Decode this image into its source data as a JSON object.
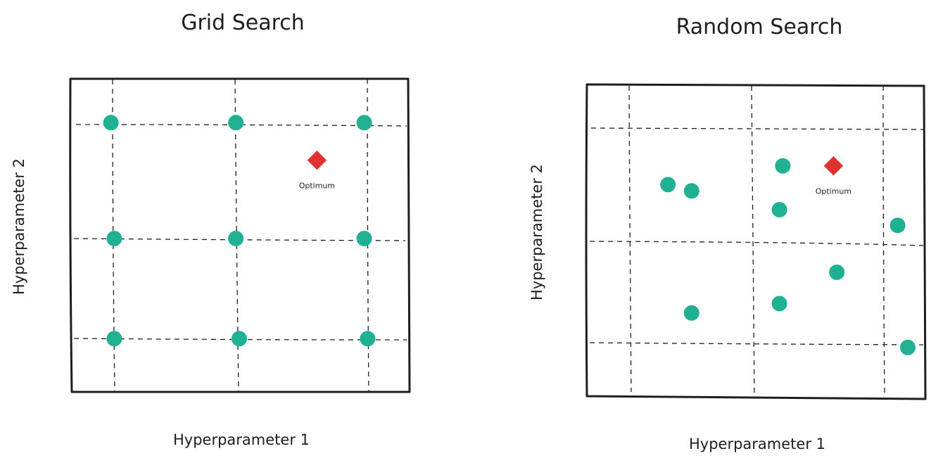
{
  "colors": {
    "point": "#20b092",
    "optimum": "#e03131",
    "ink": "#1e1e1e"
  },
  "panels": [
    {
      "title": "Grid Search",
      "x_label": "Hyperparameter 1",
      "y_label": "Hyperparameter 2",
      "optimum_label": "Optimum",
      "points": [
        {
          "h1": 0.12,
          "h2": 0.86
        },
        {
          "h1": 0.49,
          "h2": 0.86
        },
        {
          "h1": 0.87,
          "h2": 0.86
        },
        {
          "h1": 0.13,
          "h2": 0.49
        },
        {
          "h1": 0.49,
          "h2": 0.49
        },
        {
          "h1": 0.87,
          "h2": 0.49
        },
        {
          "h1": 0.13,
          "h2": 0.17
        },
        {
          "h1": 0.5,
          "h2": 0.17
        },
        {
          "h1": 0.88,
          "h2": 0.17
        }
      ],
      "optimum": {
        "h1": 0.73,
        "h2": 0.74
      }
    },
    {
      "title": "Random Search",
      "x_label": "Hyperparameter 1",
      "y_label": "Hyperparameter 2",
      "optimum_label": "Optimum",
      "points": [
        {
          "h1": 0.24,
          "h2": 0.68
        },
        {
          "h1": 0.31,
          "h2": 0.66
        },
        {
          "h1": 0.58,
          "h2": 0.74
        },
        {
          "h1": 0.57,
          "h2": 0.6
        },
        {
          "h1": 0.92,
          "h2": 0.55
        },
        {
          "h1": 0.74,
          "h2": 0.4
        },
        {
          "h1": 0.57,
          "h2": 0.3
        },
        {
          "h1": 0.31,
          "h2": 0.27
        },
        {
          "h1": 0.95,
          "h2": 0.16
        }
      ],
      "optimum": {
        "h1": 0.73,
        "h2": 0.74
      }
    }
  ]
}
